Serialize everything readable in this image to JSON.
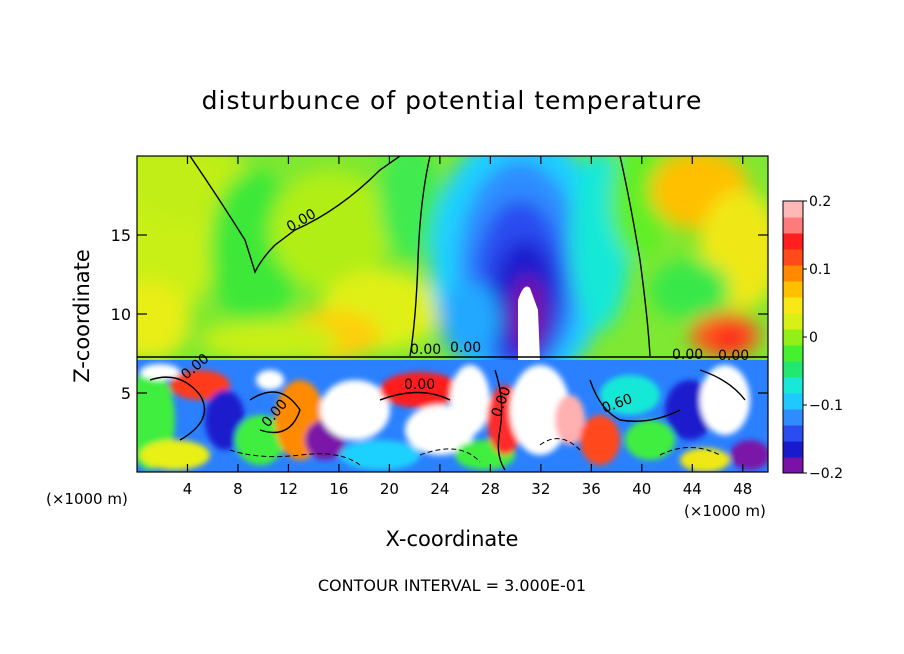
{
  "chart_data": {
    "type": "heatmap",
    "title": "disturbunce of potential temperature",
    "xlabel": "X-coordinate",
    "ylabel": "Z-coordinate",
    "x_unit": "(×1000 m)",
    "x_ticks": [
      4,
      8,
      12,
      16,
      20,
      24,
      28,
      32,
      36,
      40,
      44,
      48
    ],
    "xlim": [
      0,
      50
    ],
    "y_ticks": [
      5,
      10,
      15
    ],
    "ylim": [
      0,
      20
    ],
    "colorbar": {
      "range": [
        -0.2,
        0.2
      ],
      "tick_labels": [
        "0.2",
        "0.1",
        "0",
        "−0.1",
        "−0.2"
      ],
      "tick_values": [
        0.2,
        0.1,
        0,
        -0.1,
        -0.2
      ],
      "colors": [
        "#7a12a8",
        "#1a1acd",
        "#2a4cf0",
        "#2f8cff",
        "#1fc8ff",
        "#18e8d8",
        "#22e872",
        "#44f030",
        "#90f018",
        "#d8f018",
        "#f8e818",
        "#ffc000",
        "#ff8a00",
        "#ff4a1a",
        "#ff1f1f",
        "#ff7a7a",
        "#ffb8b8"
      ]
    },
    "contour_labels": [
      "0.00",
      "0.00",
      "0.00",
      "0.00",
      "0.00",
      "0.00",
      "0.00",
      "0.60",
      "0.00",
      "0.00"
    ],
    "footnote": "CONTOUR INTERVAL = 3.000E-01",
    "grid": false,
    "legend": "right colorbar"
  }
}
